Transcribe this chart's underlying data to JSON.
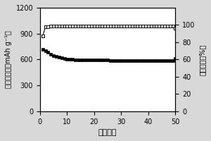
{
  "title": "",
  "xlabel": "循环圈数",
  "ylabel_left": "放电比容量（mAh g⁻¹）",
  "ylabel_right": "库伦效率（%）",
  "xlim": [
    0,
    50
  ],
  "ylim_left": [
    0,
    1200
  ],
  "ylim_right": [
    0,
    120
  ],
  "yticks_left": [
    0,
    300,
    600,
    900,
    1200
  ],
  "yticks_right": [
    0,
    20,
    40,
    60,
    80,
    100
  ],
  "xticks": [
    0,
    10,
    20,
    30,
    40,
    50
  ],
  "capacity_x": [
    1,
    2,
    3,
    4,
    5,
    6,
    7,
    8,
    9,
    10,
    11,
    12,
    13,
    14,
    15,
    16,
    17,
    18,
    19,
    20,
    21,
    22,
    23,
    24,
    25,
    26,
    27,
    28,
    29,
    30,
    31,
    32,
    33,
    34,
    35,
    36,
    37,
    38,
    39,
    40,
    41,
    42,
    43,
    44,
    45,
    46,
    47,
    48,
    49,
    50
  ],
  "capacity_y": [
    720,
    700,
    685,
    660,
    645,
    635,
    625,
    618,
    612,
    607,
    603,
    600,
    598,
    597,
    596,
    595,
    595,
    594,
    594,
    593,
    592,
    592,
    592,
    591,
    591,
    590,
    590,
    590,
    589,
    589,
    588,
    588,
    588,
    587,
    587,
    587,
    586,
    586,
    586,
    585,
    585,
    585,
    585,
    584,
    584,
    584,
    584,
    583,
    583,
    615
  ],
  "coulombic_x": [
    1,
    2,
    3,
    4,
    5,
    6,
    7,
    8,
    9,
    10,
    11,
    12,
    13,
    14,
    15,
    16,
    17,
    18,
    19,
    20,
    21,
    22,
    23,
    24,
    25,
    26,
    27,
    28,
    29,
    30,
    31,
    32,
    33,
    34,
    35,
    36,
    37,
    38,
    39,
    40,
    41,
    42,
    43,
    44,
    45,
    46,
    47,
    48,
    49,
    50
  ],
  "coulombic_y": [
    87,
    97.5,
    98.2,
    98.5,
    98.7,
    98.8,
    98.9,
    98.9,
    99.0,
    99.0,
    99.0,
    99.0,
    99.0,
    99.0,
    98.9,
    98.9,
    98.9,
    98.9,
    98.9,
    98.8,
    98.8,
    98.8,
    98.8,
    98.8,
    98.8,
    98.7,
    98.7,
    98.7,
    98.7,
    98.7,
    98.7,
    98.6,
    98.6,
    98.6,
    98.6,
    98.6,
    98.6,
    98.5,
    98.5,
    98.5,
    98.5,
    98.5,
    98.5,
    98.5,
    98.5,
    98.4,
    98.4,
    98.4,
    98.4,
    96.5
  ],
  "capacity_color": "black",
  "coulombic_color": "black",
  "bg_color": "#d8d8d8",
  "plot_bg_color": "white",
  "ylabel_left_size": 7,
  "ylabel_right_size": 7,
  "xlabel_size": 8,
  "tick_size": 7
}
